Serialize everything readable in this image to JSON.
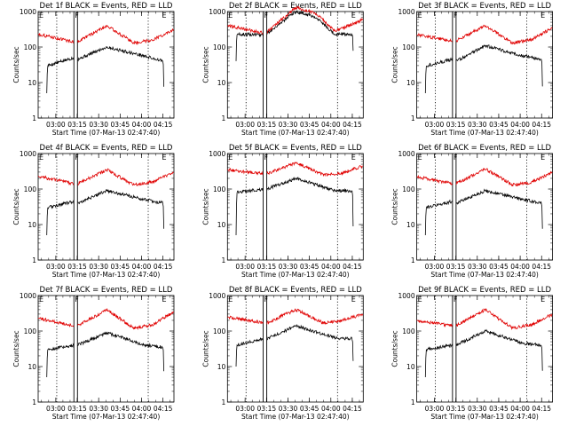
{
  "colors": {
    "events": "#000000",
    "lld": "#e00000",
    "axes": "#000000"
  },
  "chart_data": [
    {
      "type": "line",
      "title": "Det 1f BLACK = Events, RED = LLD",
      "xlabel": "Start Time (07-Mar-13 02:47:40)",
      "ylabel": "Counts/sec",
      "scale_y": "log",
      "ylim": [
        1,
        1000
      ],
      "y_ticks": [
        "1",
        "10",
        "100",
        "1000"
      ],
      "x_ticks": [
        "03:00",
        "03:15",
        "03:30",
        "03:45",
        "04:00",
        "04:15"
      ],
      "xlim_minutes_after_start": [
        0,
        95
      ],
      "grid": false,
      "markers": [
        {
          "label": "E",
          "at_minutes_after_start": 0
        },
        {
          "label": "F",
          "at_minutes_after_start": 25
        },
        {
          "label": "E",
          "at_minutes_after_start": 86
        }
      ],
      "dotted_lines_minutes_after_start": [
        13,
        77
      ],
      "gap_minutes_after_start": [
        25,
        27.5
      ],
      "series": [
        {
          "name": "Events",
          "x_minutes_after_start": [
            6,
            6.5,
            25,
            27.5,
            48,
            75,
            87.5,
            88
          ],
          "values": [
            5,
            30,
            50,
            45,
            100,
            55,
            40,
            5
          ]
        },
        {
          "name": "LLD",
          "x_minutes_after_start": [
            0,
            25,
            27.5,
            48,
            67,
            80,
            95
          ],
          "values": [
            230,
            140,
            140,
            400,
            130,
            160,
            300
          ]
        }
      ]
    },
    {
      "type": "line",
      "title": "Det 2f BLACK = Events, RED = LLD",
      "xlabel": "Start Time (07-Mar-13 02:47:40)",
      "ylabel": "Counts/sec",
      "scale_y": "log",
      "ylim": [
        1,
        1000
      ],
      "y_ticks": [
        "1",
        "10",
        "100",
        "1000"
      ],
      "x_ticks": [
        "03:00",
        "03:15",
        "03:30",
        "03:45",
        "04:00",
        "04:15"
      ],
      "xlim_minutes_after_start": [
        0,
        95
      ],
      "grid": false,
      "markers": [
        {
          "label": "E",
          "at_minutes_after_start": 0
        },
        {
          "label": "F",
          "at_minutes_after_start": 25
        },
        {
          "label": "E",
          "at_minutes_after_start": 86
        }
      ],
      "dotted_lines_minutes_after_start": [
        13,
        77
      ],
      "gap_minutes_after_start": [
        25,
        27.5
      ],
      "series": [
        {
          "name": "Events",
          "x_minutes_after_start": [
            6,
            6.5,
            25,
            27.5,
            48,
            62,
            75,
            87.5,
            88
          ],
          "values": [
            40,
            230,
            220,
            240,
            1000,
            700,
            230,
            230,
            60
          ]
        },
        {
          "name": "LLD",
          "x_minutes_after_start": [
            0,
            25,
            27.5,
            48,
            62,
            75,
            95
          ],
          "values": [
            400,
            250,
            260,
            1300,
            900,
            280,
            600
          ]
        }
      ]
    },
    {
      "type": "line",
      "title": "Det 3f BLACK = Events, RED = LLD",
      "xlabel": "Start Time (07-Mar-13 02:47:40)",
      "ylabel": "Counts/sec",
      "scale_y": "log",
      "ylim": [
        1,
        1000
      ],
      "y_ticks": [
        "1",
        "10",
        "100",
        "1000"
      ],
      "x_ticks": [
        "03:00",
        "03:15",
        "03:30",
        "03:45",
        "04:00",
        "04:15"
      ],
      "xlim_minutes_after_start": [
        0,
        95
      ],
      "grid": false,
      "markers": [
        {
          "label": "E",
          "at_minutes_after_start": 0
        },
        {
          "label": "F",
          "at_minutes_after_start": 25
        },
        {
          "label": "E",
          "at_minutes_after_start": 86
        }
      ],
      "dotted_lines_minutes_after_start": [
        13,
        77
      ],
      "gap_minutes_after_start": [
        25,
        27.5
      ],
      "series": [
        {
          "name": "Events",
          "x_minutes_after_start": [
            6,
            6.5,
            25,
            27.5,
            48,
            75,
            87.5,
            88
          ],
          "values": [
            5,
            30,
            45,
            40,
            110,
            55,
            45,
            5
          ]
        },
        {
          "name": "LLD",
          "x_minutes_after_start": [
            0,
            25,
            27.5,
            48,
            67,
            80,
            95
          ],
          "values": [
            220,
            150,
            150,
            400,
            130,
            160,
            350
          ]
        }
      ]
    },
    {
      "type": "line",
      "title": "Det 4f BLACK = Events, RED = LLD",
      "xlabel": "Start Time (07-Mar-13 02:47:40)",
      "ylabel": "Counts/sec",
      "scale_y": "log",
      "ylim": [
        1,
        1000
      ],
      "y_ticks": [
        "1",
        "10",
        "100",
        "1000"
      ],
      "x_ticks": [
        "03:00",
        "03:15",
        "03:30",
        "03:45",
        "04:00",
        "04:15"
      ],
      "xlim_minutes_after_start": [
        0,
        95
      ],
      "grid": false,
      "markers": [
        {
          "label": "E",
          "at_minutes_after_start": 0
        },
        {
          "label": "F",
          "at_minutes_after_start": 25
        },
        {
          "label": "E",
          "at_minutes_after_start": 86
        }
      ],
      "dotted_lines_minutes_after_start": [
        13,
        77
      ],
      "gap_minutes_after_start": [
        25,
        27.5
      ],
      "series": [
        {
          "name": "Events",
          "x_minutes_after_start": [
            6,
            6.5,
            25,
            27.5,
            48,
            75,
            87.5,
            88
          ],
          "values": [
            5,
            30,
            45,
            40,
            90,
            50,
            40,
            5
          ]
        },
        {
          "name": "LLD",
          "x_minutes_after_start": [
            0,
            25,
            27.5,
            48,
            67,
            80,
            95
          ],
          "values": [
            230,
            140,
            140,
            350,
            130,
            160,
            300
          ]
        }
      ]
    },
    {
      "type": "line",
      "title": "Det 5f BLACK = Events, RED = LLD",
      "xlabel": "Start Time (07-Mar-13 02:47:40)",
      "ylabel": "Counts/sec",
      "scale_y": "log",
      "ylim": [
        1,
        1000
      ],
      "y_ticks": [
        "1",
        "10",
        "100",
        "1000"
      ],
      "x_ticks": [
        "03:00",
        "03:15",
        "03:30",
        "03:45",
        "04:00",
        "04:15"
      ],
      "xlim_minutes_after_start": [
        0,
        95
      ],
      "grid": false,
      "markers": [
        {
          "label": "E",
          "at_minutes_after_start": 0
        },
        {
          "label": "F",
          "at_minutes_after_start": 25
        },
        {
          "label": "E",
          "at_minutes_after_start": 86
        }
      ],
      "dotted_lines_minutes_after_start": [
        13,
        77
      ],
      "gap_minutes_after_start": [
        25,
        27.5
      ],
      "series": [
        {
          "name": "Events",
          "x_minutes_after_start": [
            6,
            6.5,
            25,
            27.5,
            48,
            75,
            87.5,
            88
          ],
          "values": [
            5,
            80,
            100,
            100,
            200,
            90,
            90,
            5
          ]
        },
        {
          "name": "LLD",
          "x_minutes_after_start": [
            0,
            25,
            27.5,
            48,
            67,
            80,
            95
          ],
          "values": [
            350,
            270,
            270,
            550,
            250,
            280,
            450
          ]
        }
      ]
    },
    {
      "type": "line",
      "title": "Det 6f BLACK = Events, RED = LLD",
      "xlabel": "Start Time (07-Mar-13 02:47:40)",
      "ylabel": "Counts/sec",
      "scale_y": "log",
      "ylim": [
        1,
        1000
      ],
      "y_ticks": [
        "1",
        "10",
        "100",
        "1000"
      ],
      "x_ticks": [
        "03:00",
        "03:15",
        "03:30",
        "03:45",
        "04:00",
        "04:15"
      ],
      "xlim_minutes_after_start": [
        0,
        95
      ],
      "grid": false,
      "markers": [
        {
          "label": "E",
          "at_minutes_after_start": 0
        },
        {
          "label": "F",
          "at_minutes_after_start": 25
        },
        {
          "label": "E",
          "at_minutes_after_start": 86
        }
      ],
      "dotted_lines_minutes_after_start": [
        13,
        77
      ],
      "gap_minutes_after_start": [
        25,
        27.5
      ],
      "series": [
        {
          "name": "Events",
          "x_minutes_after_start": [
            6,
            6.5,
            25,
            27.5,
            48,
            75,
            87.5,
            88
          ],
          "values": [
            5,
            30,
            45,
            40,
            90,
            50,
            40,
            5
          ]
        },
        {
          "name": "LLD",
          "x_minutes_after_start": [
            0,
            25,
            27.5,
            48,
            67,
            80,
            95
          ],
          "values": [
            220,
            140,
            140,
            370,
            130,
            150,
            300
          ]
        }
      ]
    },
    {
      "type": "line",
      "title": "Det 7f BLACK = Events, RED = LLD",
      "xlabel": "Start Time (07-Mar-13 02:47:40)",
      "ylabel": "Counts/sec",
      "scale_y": "log",
      "ylim": [
        1,
        1000
      ],
      "y_ticks": [
        "1",
        "10",
        "100",
        "1000"
      ],
      "x_ticks": [
        "03:00",
        "03:15",
        "03:30",
        "03:45",
        "04:00",
        "04:15"
      ],
      "xlim_minutes_after_start": [
        0,
        95
      ],
      "grid": false,
      "markers": [
        {
          "label": "E",
          "at_minutes_after_start": 0
        },
        {
          "label": "F",
          "at_minutes_after_start": 25
        },
        {
          "label": "E",
          "at_minutes_after_start": 86
        }
      ],
      "dotted_lines_minutes_after_start": [
        13,
        77
      ],
      "gap_minutes_after_start": [
        25,
        27.5
      ],
      "series": [
        {
          "name": "Events",
          "x_minutes_after_start": [
            6,
            6.5,
            25,
            27.5,
            48,
            75,
            87.5,
            88
          ],
          "values": [
            5,
            30,
            40,
            40,
            90,
            40,
            35,
            5
          ]
        },
        {
          "name": "LLD",
          "x_minutes_after_start": [
            0,
            25,
            27.5,
            48,
            67,
            80,
            95
          ],
          "values": [
            230,
            140,
            140,
            400,
            120,
            150,
            350
          ]
        }
      ]
    },
    {
      "type": "line",
      "title": "Det 8f BLACK = Events, RED = LLD",
      "xlabel": "Start Time (07-Mar-13 02:47:40)",
      "ylabel": "Counts/sec",
      "scale_y": "log",
      "ylim": [
        1,
        1000
      ],
      "y_ticks": [
        "1",
        "10",
        "100",
        "1000"
      ],
      "x_ticks": [
        "03:00",
        "03:15",
        "03:30",
        "03:45",
        "04:00",
        "04:15"
      ],
      "xlim_minutes_after_start": [
        0,
        95
      ],
      "grid": false,
      "markers": [
        {
          "label": "E",
          "at_minutes_after_start": 0
        },
        {
          "label": "F",
          "at_minutes_after_start": 25
        },
        {
          "label": "E",
          "at_minutes_after_start": 86
        }
      ],
      "dotted_lines_minutes_after_start": [
        13,
        77
      ],
      "gap_minutes_after_start": [
        25,
        27.5
      ],
      "series": [
        {
          "name": "Events",
          "x_minutes_after_start": [
            6,
            6.5,
            25,
            27.5,
            48,
            75,
            87.5,
            88
          ],
          "values": [
            10,
            40,
            60,
            60,
            140,
            65,
            60,
            10
          ]
        },
        {
          "name": "LLD",
          "x_minutes_after_start": [
            0,
            25,
            27.5,
            48,
            67,
            80,
            95
          ],
          "values": [
            250,
            170,
            170,
            400,
            170,
            200,
            300
          ]
        }
      ]
    },
    {
      "type": "line",
      "title": "Det 9f BLACK = Events, RED = LLD",
      "xlabel": "Start Time (07-Mar-13 02:47:40)",
      "ylabel": "Counts/sec",
      "scale_y": "log",
      "ylim": [
        1,
        1000
      ],
      "y_ticks": [
        "1",
        "10",
        "100",
        "1000"
      ],
      "x_ticks": [
        "03:00",
        "03:15",
        "03:30",
        "03:45",
        "04:00",
        "04:15"
      ],
      "xlim_minutes_after_start": [
        0,
        95
      ],
      "grid": false,
      "markers": [
        {
          "label": "E",
          "at_minutes_after_start": 0
        },
        {
          "label": "F",
          "at_minutes_after_start": 25
        },
        {
          "label": "E",
          "at_minutes_after_start": 86
        }
      ],
      "dotted_lines_minutes_after_start": [
        13,
        77
      ],
      "gap_minutes_after_start": [
        25,
        27.5
      ],
      "series": [
        {
          "name": "Events",
          "x_minutes_after_start": [
            6,
            6.5,
            25,
            27.5,
            48,
            75,
            87.5,
            88
          ],
          "values": [
            5,
            30,
            40,
            40,
            100,
            45,
            40,
            5
          ]
        },
        {
          "name": "LLD",
          "x_minutes_after_start": [
            0,
            25,
            27.5,
            48,
            67,
            80,
            95
          ],
          "values": [
            200,
            140,
            140,
            400,
            120,
            150,
            300
          ]
        }
      ]
    }
  ]
}
